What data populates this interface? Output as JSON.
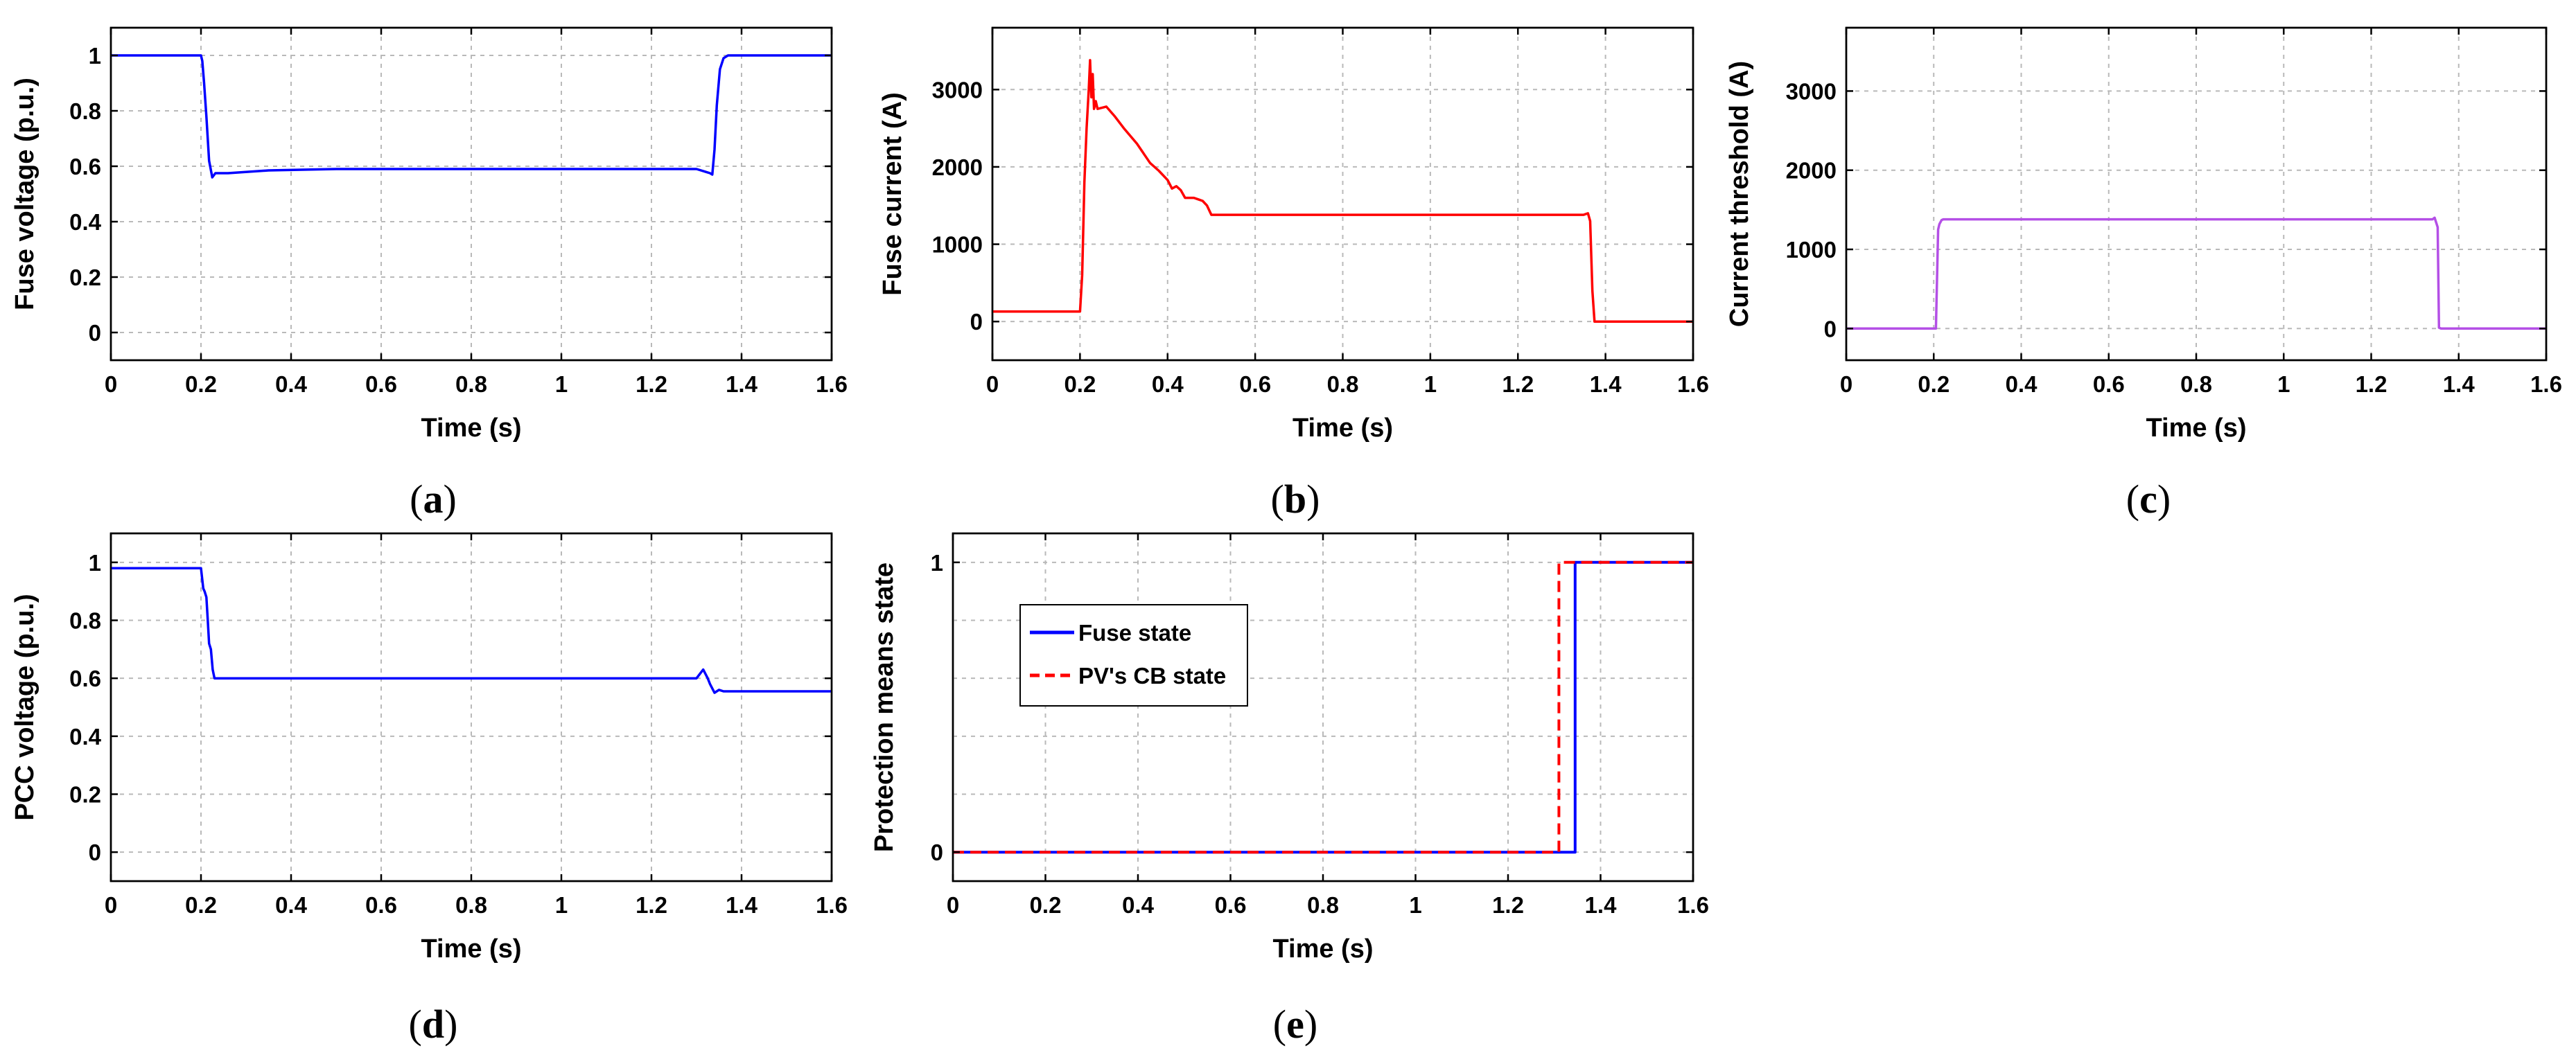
{
  "chart_data": [
    {
      "id": "a",
      "type": "line",
      "panel_label": "a",
      "xlabel": "Time (s)",
      "ylabel": "Fuse voltage (p.u.)",
      "xlim": [
        0,
        1.6
      ],
      "ylim": [
        -0.1,
        1.1
      ],
      "xticks": [
        0,
        0.2,
        0.4,
        0.6,
        0.8,
        1,
        1.2,
        1.4,
        1.6
      ],
      "xtick_labels": [
        "0",
        "0.2",
        "0.4",
        "0.6",
        "0.8",
        "1",
        "1.2",
        "1.4",
        "1.6"
      ],
      "yticks": [
        0,
        0.2,
        0.4,
        0.6,
        0.8,
        1
      ],
      "ytick_labels": [
        "0",
        "0.2",
        "0.4",
        "0.6",
        "0.8",
        "1"
      ],
      "grid": true,
      "series": [
        {
          "name": "Fuse voltage",
          "color": "#0000ff",
          "dash": "solid",
          "x": [
            0,
            0.2,
            0.203,
            0.207,
            0.212,
            0.218,
            0.225,
            0.232,
            0.26,
            0.35,
            0.5,
            0.8,
            1.1,
            1.3,
            1.33,
            1.335,
            1.34,
            1.345,
            1.352,
            1.36,
            1.37,
            1.6
          ],
          "y": [
            1,
            1,
            0.98,
            0.9,
            0.78,
            0.62,
            0.56,
            0.575,
            0.575,
            0.585,
            0.59,
            0.59,
            0.59,
            0.59,
            0.575,
            0.57,
            0.66,
            0.82,
            0.95,
            0.99,
            1,
            1
          ]
        }
      ]
    },
    {
      "id": "b",
      "type": "line",
      "panel_label": "b",
      "xlabel": "Time (s)",
      "ylabel": "Fuse current (A)",
      "xlim": [
        0,
        1.6
      ],
      "ylim": [
        -500,
        3800
      ],
      "xticks": [
        0,
        0.2,
        0.4,
        0.6,
        0.8,
        1,
        1.2,
        1.4,
        1.6
      ],
      "xtick_labels": [
        "0",
        "0.2",
        "0.4",
        "0.6",
        "0.8",
        "1",
        "1.2",
        "1.4",
        "1.6"
      ],
      "yticks": [
        0,
        1000,
        2000,
        3000
      ],
      "ytick_labels": [
        "0",
        "1000",
        "2000",
        "3000"
      ],
      "grid": true,
      "series": [
        {
          "name": "Fuse current",
          "color": "#ff0000",
          "dash": "solid",
          "x": [
            0,
            0.2,
            0.205,
            0.21,
            0.215,
            0.22,
            0.223,
            0.226,
            0.229,
            0.232,
            0.236,
            0.24,
            0.26,
            0.28,
            0.3,
            0.33,
            0.36,
            0.38,
            0.4,
            0.41,
            0.42,
            0.43,
            0.44,
            0.46,
            0.47,
            0.48,
            0.49,
            0.5,
            0.8,
            1.2,
            1.35,
            1.36,
            1.365,
            1.37,
            1.375,
            1.6
          ],
          "y": [
            130,
            130,
            600,
            1800,
            2500,
            3000,
            3380,
            2900,
            3200,
            2750,
            2850,
            2750,
            2780,
            2650,
            2500,
            2300,
            2050,
            1950,
            1830,
            1720,
            1750,
            1700,
            1600,
            1600,
            1580,
            1560,
            1500,
            1380,
            1380,
            1380,
            1380,
            1400,
            1300,
            400,
            0,
            0
          ]
        }
      ]
    },
    {
      "id": "c",
      "type": "line",
      "panel_label": "c",
      "xlabel": "Time (s)",
      "ylabel": "Current threshold (A)",
      "xlim": [
        0,
        1.6
      ],
      "ylim": [
        -400,
        3800
      ],
      "xticks": [
        0,
        0.2,
        0.4,
        0.6,
        0.8,
        1,
        1.2,
        1.4,
        1.6
      ],
      "xtick_labels": [
        "0",
        "0.2",
        "0.4",
        "0.6",
        "0.8",
        "1",
        "1.2",
        "1.4",
        "1.6"
      ],
      "yticks": [
        0,
        1000,
        2000,
        3000
      ],
      "ytick_labels": [
        "0",
        "1000",
        "2000",
        "3000"
      ],
      "grid": true,
      "series": [
        {
          "name": "Current threshold",
          "color": "#b44fe6",
          "dash": "solid",
          "x": [
            0,
            0.205,
            0.21,
            0.213,
            0.218,
            0.222,
            0.3,
            0.8,
            1.2,
            1.34,
            1.345,
            1.352,
            1.355,
            1.36,
            1.6
          ],
          "y": [
            0,
            0,
            1250,
            1320,
            1370,
            1380,
            1380,
            1380,
            1380,
            1380,
            1400,
            1280,
            10,
            0,
            0
          ]
        }
      ]
    },
    {
      "id": "d",
      "type": "line",
      "panel_label": "d",
      "xlabel": "Time (s)",
      "ylabel": "PCC voltage (p.u.)",
      "xlim": [
        0,
        1.6
      ],
      "ylim": [
        -0.1,
        1.1
      ],
      "xticks": [
        0,
        0.2,
        0.4,
        0.6,
        0.8,
        1,
        1.2,
        1.4,
        1.6
      ],
      "xtick_labels": [
        "0",
        "0.2",
        "0.4",
        "0.6",
        "0.8",
        "1",
        "1.2",
        "1.4",
        "1.6"
      ],
      "yticks": [
        0,
        0.2,
        0.4,
        0.6,
        0.8,
        1
      ],
      "ytick_labels": [
        "0",
        "0.2",
        "0.4",
        "0.6",
        "0.8",
        "1"
      ],
      "grid": true,
      "series": [
        {
          "name": "PCC voltage",
          "color": "#0000ff",
          "dash": "solid",
          "x": [
            0,
            0.2,
            0.205,
            0.208,
            0.212,
            0.215,
            0.218,
            0.222,
            0.226,
            0.23,
            0.235,
            0.5,
            1.0,
            1.3,
            1.315,
            1.325,
            1.33,
            1.34,
            1.35,
            1.36,
            1.6
          ],
          "y": [
            0.98,
            0.98,
            0.91,
            0.9,
            0.88,
            0.8,
            0.72,
            0.7,
            0.63,
            0.6,
            0.6,
            0.6,
            0.6,
            0.6,
            0.63,
            0.6,
            0.58,
            0.55,
            0.56,
            0.555,
            0.555
          ]
        }
      ]
    },
    {
      "id": "e",
      "type": "line",
      "panel_label": "e",
      "xlabel": "Time (s)",
      "ylabel": "Protection means state",
      "xlim": [
        0,
        1.6
      ],
      "ylim": [
        -0.1,
        1.1
      ],
      "xticks": [
        0,
        0.2,
        0.4,
        0.6,
        0.8,
        1,
        1.2,
        1.4,
        1.6
      ],
      "xtick_labels": [
        "0",
        "0.2",
        "0.4",
        "0.6",
        "0.8",
        "1",
        "1.2",
        "1.4",
        "1.6"
      ],
      "yticks": [
        0,
        1
      ],
      "ytick_labels": [
        "0",
        "1"
      ],
      "yminor_grid": [
        0.2,
        0.4,
        0.6,
        0.8
      ],
      "grid": true,
      "legend": {
        "placement": "upper-left",
        "entries": [
          {
            "label": "Fuse state",
            "color": "#0000ff",
            "dash": "solid"
          },
          {
            "label": "PV's CB state",
            "color": "#ff0000",
            "dash": "dashed"
          }
        ]
      },
      "series": [
        {
          "name": "Fuse state",
          "color": "#0000ff",
          "dash": "solid",
          "x": [
            0,
            1.345,
            1.345,
            1.6
          ],
          "y": [
            0,
            0,
            1,
            1
          ]
        },
        {
          "name": "PV's CB state",
          "color": "#ff0000",
          "dash": "dashed",
          "x": [
            0,
            1.31,
            1.31,
            1.6
          ],
          "y": [
            0,
            0,
            1,
            1
          ]
        }
      ]
    }
  ]
}
